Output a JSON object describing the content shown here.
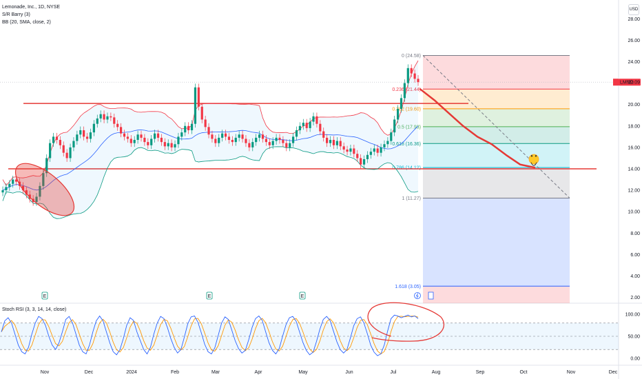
{
  "header": {
    "symbol_line": "Lemonade, Inc., 1D, NYSE",
    "indicator_1": "S/R Barry (3)",
    "indicator_2": "BB (20, SMA, close, 2)",
    "currency_button": "USD"
  },
  "rsi_pane": {
    "title": "Stoch RSI (3, 3, 14, 14, close)",
    "axis_labels": [
      "100.00",
      "50.00",
      "0.00"
    ]
  },
  "price_axis": {
    "labels": [
      "28.00",
      "26.00",
      "24.00",
      "22.00",
      "20.00",
      "18.00",
      "16.00",
      "14.00",
      "12.00",
      "10.00",
      "8.00",
      "6.00",
      "4.00",
      "2.00"
    ]
  },
  "price_tag": {
    "symbol": "LMND",
    "price": "22.09",
    "color": "#f23645"
  },
  "time_axis": {
    "labels": [
      "Nov",
      "Dec",
      "2024",
      "Feb",
      "Mar",
      "Apr",
      "May",
      "Jun",
      "Jul",
      "Aug",
      "Sep",
      "Oct",
      "Nov",
      "Dec"
    ]
  },
  "fibonacci": [
    {
      "label": "0 (24.58)",
      "color": "#787b86"
    },
    {
      "label": "0.236 (21.44)",
      "color": "#f23645"
    },
    {
      "label": "0.382 (19.60)",
      "color": "#ff9800"
    },
    {
      "label": "0.5 (17.93)",
      "color": "#4caf50"
    },
    {
      "label": "0.618 (16.36)",
      "color": "#089981"
    },
    {
      "label": "0.786 (14.12)",
      "color": "#00bcd4"
    },
    {
      "label": "1 (11.27)",
      "color": "#787b86"
    },
    {
      "label": "1.618 (3.05)",
      "color": "#2962ff"
    }
  ],
  "event_markers": [
    "E",
    "E",
    "E"
  ],
  "chart_data": {
    "type": "candlestick",
    "title": "Lemonade, Inc., 1D, NYSE",
    "ylim": [
      2,
      28
    ],
    "y_scale": "linear",
    "fib_levels": [
      {
        "ratio": 0,
        "value": 24.58
      },
      {
        "ratio": 0.236,
        "value": 21.44
      },
      {
        "ratio": 0.382,
        "value": 19.6
      },
      {
        "ratio": 0.5,
        "value": 17.93
      },
      {
        "ratio": 0.618,
        "value": 16.36
      },
      {
        "ratio": 0.786,
        "value": 14.12
      },
      {
        "ratio": 1,
        "value": 11.27
      },
      {
        "ratio": 1.618,
        "value": 3.05
      }
    ],
    "horizontal_levels": [
      20.1,
      14.0
    ],
    "last_price": 22.09,
    "close_series_approx": [
      12.0,
      12.3,
      12.6,
      13.0,
      12.8,
      12.4,
      12.0,
      11.6,
      11.2,
      10.9,
      11.4,
      12.4,
      13.6,
      15.0,
      16.4,
      17.0,
      16.7,
      16.2,
      15.5,
      15.0,
      16.0,
      16.6,
      17.2,
      17.6,
      17.0,
      16.8,
      17.4,
      18.2,
      18.7,
      19.1,
      18.6,
      18.9,
      18.8,
      18.2,
      17.9,
      17.3,
      17.0,
      16.8,
      16.4,
      16.7,
      17.2,
      16.9,
      16.5,
      16.2,
      16.8,
      17.3,
      16.9,
      16.5,
      16.1,
      16.4,
      16.0,
      16.3,
      17.0,
      17.4,
      18.0,
      17.6,
      18.2,
      21.6,
      19.8,
      18.6,
      17.9,
      17.2,
      16.8,
      16.4,
      16.9,
      17.3,
      17.0,
      16.7,
      16.5,
      16.9,
      17.2,
      16.8,
      16.4,
      16.0,
      16.5,
      16.9,
      17.2,
      16.8,
      16.5,
      16.2,
      16.6,
      16.9,
      16.7,
      16.4,
      16.0,
      16.4,
      17.0,
      17.6,
      18.0,
      18.3,
      17.8,
      18.4,
      18.9,
      18.2,
      17.5,
      16.9,
      16.4,
      16.7,
      16.2,
      16.6,
      16.1,
      15.8,
      15.6,
      15.9,
      15.4,
      15.0,
      14.4,
      14.9,
      15.3,
      15.6,
      15.9,
      15.5,
      16.0,
      16.3,
      16.6,
      17.4,
      18.6,
      19.6,
      20.6,
      22.0,
      23.4,
      22.9,
      22.4,
      22.09
    ],
    "projection_path": [
      21.44,
      20.4,
      19.2,
      18.0,
      17.0,
      16.3,
      15.3,
      14.4,
      14.12
    ],
    "stoch_rsi": {
      "ylim": [
        0,
        100
      ],
      "bands": [
        80,
        50,
        20
      ],
      "k_approx": [
        60,
        85,
        92,
        80,
        55,
        30,
        15,
        10,
        25,
        55,
        80,
        95,
        90,
        75,
        50,
        30,
        20,
        35,
        60,
        88,
        95,
        80,
        55,
        30,
        15,
        10,
        30,
        60,
        85,
        96,
        85,
        60,
        35,
        15,
        8,
        20,
        45,
        75,
        92,
        86,
        60,
        40,
        20,
        10,
        25,
        55,
        80,
        95,
        90,
        70,
        45,
        25,
        12,
        20,
        48,
        78,
        94,
        96,
        82,
        58,
        32,
        15,
        10,
        24,
        52,
        80,
        94,
        88,
        64,
        40,
        22,
        12,
        18,
        42,
        70,
        90,
        96,
        86,
        60,
        35,
        18,
        10,
        22,
        50,
        76,
        92,
        95,
        84,
        60,
        36,
        18,
        8,
        14,
        38,
        66,
        88,
        95,
        86,
        62,
        38,
        20,
        12,
        20,
        46,
        74,
        90,
        94,
        80,
        56,
        30,
        14,
        6,
        10,
        30,
        62,
        90,
        98,
        96,
        92,
        95,
        98,
        94,
        96,
        90
      ]
    }
  }
}
